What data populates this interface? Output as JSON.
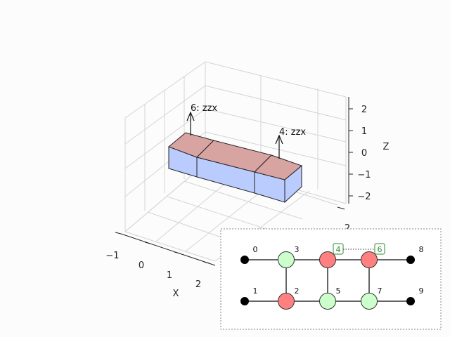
{
  "axes3d": {
    "x_label": "X",
    "z_label": "Z",
    "x_ticks": [
      "−1",
      "0",
      "1",
      "2"
    ],
    "y_ticks": [
      "2"
    ],
    "z_ticks": [
      "2",
      "1",
      "0",
      "−1",
      "−2"
    ]
  },
  "blocks": {
    "top_color": "#d8a4a2",
    "side_color": "#b9ccfd",
    "annotations": [
      {
        "label": "6: zzx"
      },
      {
        "label": "4: zzx"
      }
    ]
  },
  "inset_graph": {
    "colors": {
      "boundary": "#000000",
      "z_node": "#ff8080",
      "x_node": "#ccffcc",
      "label_highlight": "#2e8b2e"
    },
    "nodes": [
      {
        "id": "0",
        "kind": "boundary"
      },
      {
        "id": "1",
        "kind": "boundary"
      },
      {
        "id": "2",
        "kind": "z"
      },
      {
        "id": "3",
        "kind": "x"
      },
      {
        "id": "4",
        "kind": "z",
        "highlighted": true
      },
      {
        "id": "5",
        "kind": "x"
      },
      {
        "id": "6",
        "kind": "z",
        "highlighted": true
      },
      {
        "id": "7",
        "kind": "x"
      },
      {
        "id": "8",
        "kind": "boundary"
      },
      {
        "id": "9",
        "kind": "boundary"
      }
    ]
  }
}
